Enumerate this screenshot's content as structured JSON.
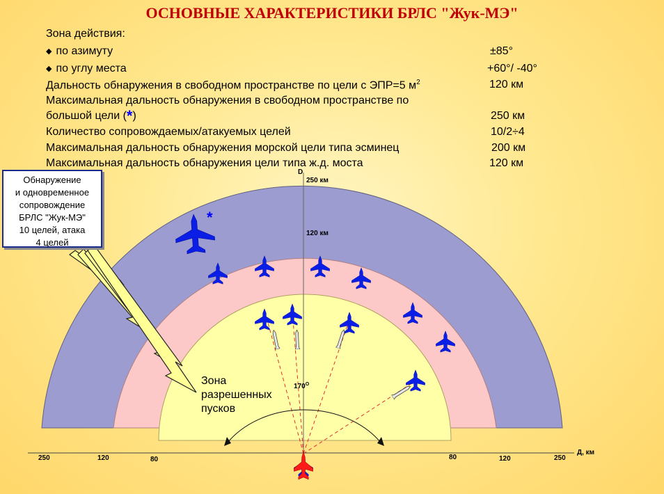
{
  "title": "ОСНОВНЫЕ ХАРАКТЕРИСТИКИ БРЛС \"Жук-МЭ\"",
  "specs": {
    "zone_label": "Зона действия:",
    "azimuth_label": "по азимуту",
    "azimuth_value": "±85°",
    "elevation_label": "по углу места",
    "elevation_value": "+60°/ -40°",
    "free_space_label": "Дальность обнаружения в свободном пространстве по цели с ЭПР=5 м",
    "free_space_sup": "2",
    "free_space_value": "120 км",
    "max_large_line1": "Максимальная дальность обнаружения  в свободном пространстве по",
    "max_large_line2a": "большой цели (",
    "max_large_star": "*",
    "max_large_line2b": ")",
    "max_large_value": "250 км",
    "tracked_label": "Количество сопровождаемых/атакуемых целей",
    "tracked_value": "10/2÷4",
    "sea_label": "Максимальная дальность обнаружения морской цели типа эсминец",
    "sea_value": "200 км",
    "bridge_label": "Максимальная дальность обнаружения цели типа ж.д. моста",
    "bridge_value": "120 км"
  },
  "callout_text": "Обнаружение\nи одновременное\nсопровождение\nБРЛС \"Жук-МЭ\"\n10 целей, атака\n4 целей",
  "zone_text": "Зона\nразрешенных\nпусков",
  "diagram": {
    "d_axis_label": "D",
    "range_250_label": "250 км",
    "range_120_label": "120 км",
    "angle_label": "170",
    "angle_sup": "O",
    "x_axis_label": "Д, км",
    "big_star": "*",
    "ticks": [
      "250",
      "120",
      "80",
      "80",
      "120",
      "250"
    ]
  },
  "colors": {
    "title": "#c00000",
    "outer_band": "#9c9cd0",
    "middle_band": "#fdc8c8",
    "inner_zone": "#ffffa8",
    "aircraft": "#0a1ee6",
    "own_fighter": "#ff1a1a",
    "arrow_fill": "#ffff96"
  }
}
